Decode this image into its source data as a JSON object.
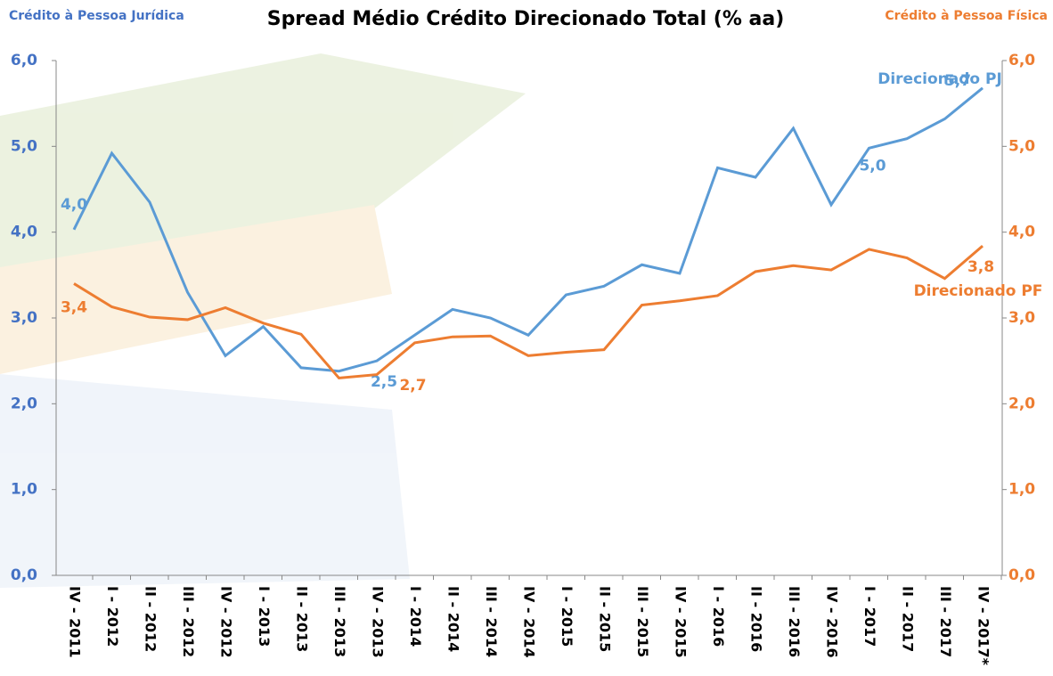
{
  "chart_data": {
    "type": "line",
    "title": "Spread Médio Crédito Direcionado Total (% aa)",
    "y_label": "Crédito à Pessoa Jurídica",
    "y2_label": "Crédito à Pessoa Física",
    "categories": [
      "IV - 2011",
      "I - 2012",
      "II - 2012",
      "III - 2012",
      "IV - 2012",
      "I - 2013",
      "II - 2013",
      "III - 2013",
      "IV - 2013",
      "I - 2014",
      "II - 2014",
      "III - 2014",
      "IV - 2014",
      "I - 2015",
      "II - 2015",
      "III - 2015",
      "IV - 2015",
      "I - 2016",
      "II - 2016",
      "III - 2016",
      "IV - 2016",
      "I - 2017",
      "II - 2017",
      "III - 2017",
      "IV - 2017*"
    ],
    "series": [
      {
        "name": "Direcionado PJ",
        "color": "#5b9bd5",
        "values": [
          4.03,
          4.92,
          4.35,
          3.3,
          2.56,
          2.9,
          2.42,
          2.38,
          2.5,
          2.8,
          3.1,
          3.0,
          2.8,
          3.27,
          3.37,
          3.62,
          3.52,
          4.75,
          4.64,
          5.21,
          4.32,
          4.98,
          5.09,
          5.32,
          5.68
        ],
        "value_labels": [
          "4,0",
          null,
          null,
          null,
          null,
          null,
          null,
          null,
          "2,5",
          null,
          null,
          null,
          null,
          null,
          null,
          null,
          null,
          null,
          null,
          null,
          null,
          "5,0",
          null,
          null,
          "5,7"
        ]
      },
      {
        "name": "Direcionado PF",
        "color": "#ed7d31",
        "axis": "y2",
        "values": [
          3.4,
          3.13,
          3.01,
          2.98,
          3.12,
          2.94,
          2.81,
          2.3,
          2.34,
          2.71,
          2.78,
          2.79,
          2.56,
          2.6,
          2.63,
          3.15,
          3.2,
          3.26,
          3.54,
          3.61,
          3.56,
          3.8,
          3.7,
          3.46,
          3.84
        ],
        "value_labels": [
          "3,4",
          null,
          null,
          null,
          null,
          null,
          null,
          null,
          null,
          "2,7",
          null,
          null,
          null,
          null,
          null,
          null,
          null,
          null,
          null,
          null,
          null,
          null,
          null,
          null,
          "3,8"
        ]
      }
    ],
    "ylim": [
      0,
      6
    ],
    "yticks": [
      {
        "value": 0,
        "label": "0,0"
      },
      {
        "value": 1,
        "label": "1,0"
      },
      {
        "value": 2,
        "label": "2,0"
      },
      {
        "value": 3,
        "label": "3,0"
      },
      {
        "value": 4,
        "label": "4,0"
      },
      {
        "value": 5,
        "label": "5,0"
      },
      {
        "value": 6,
        "label": "6,0"
      }
    ],
    "y2lim": [
      0,
      6
    ],
    "y2ticks": [
      {
        "value": 0,
        "label": "0,0"
      },
      {
        "value": 1,
        "label": "1,0"
      },
      {
        "value": 2,
        "label": "2,0"
      },
      {
        "value": 3,
        "label": "3,0"
      },
      {
        "value": 4,
        "label": "4,0"
      },
      {
        "value": 5,
        "label": "5,0"
      },
      {
        "value": 6,
        "label": "6,0"
      }
    ],
    "grid": false
  }
}
